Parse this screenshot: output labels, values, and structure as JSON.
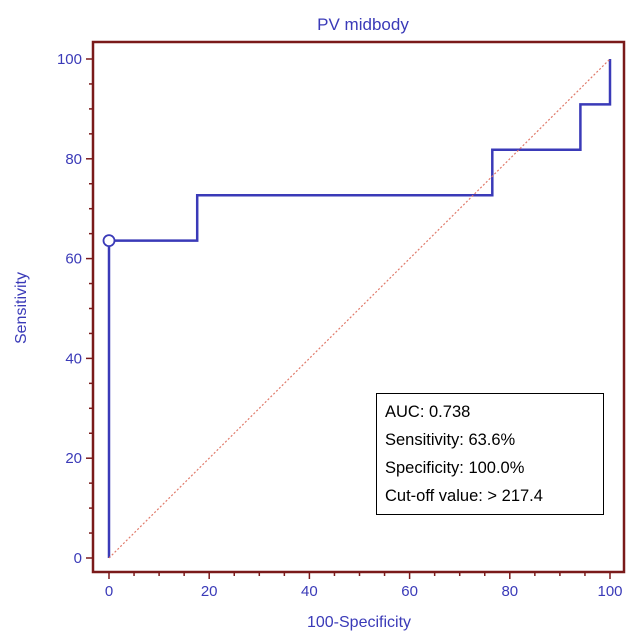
{
  "chart_data": {
    "type": "line",
    "title": "PV midbody",
    "xlabel": "100-Specificity",
    "ylabel": "Sensitivity",
    "xlim": [
      0,
      100
    ],
    "ylim": [
      0,
      100
    ],
    "xticks": [
      0,
      20,
      40,
      60,
      80,
      100
    ],
    "yticks": [
      0,
      20,
      40,
      60,
      80,
      100
    ],
    "grid": false,
    "series": [
      {
        "style": "roc-step",
        "color": "#3a3ab8",
        "x": [
          0,
          0,
          17.6,
          17.6,
          76.5,
          76.5,
          94.1,
          94.1,
          100,
          100
        ],
        "y": [
          0,
          63.6,
          63.6,
          72.7,
          72.7,
          81.8,
          81.8,
          90.9,
          90.9,
          100
        ]
      },
      {
        "style": "reference-diagonal",
        "color": "#e07a6a",
        "x": [
          0,
          100
        ],
        "y": [
          0,
          100
        ]
      }
    ],
    "marker": {
      "x": 0,
      "y": 63.6
    },
    "annotation_box": {
      "placement": "bottom-right",
      "lines": [
        "AUC: 0.738",
        "Sensitivity: 63.6%",
        "Specificity: 100.0%",
        "Cut-off value: > 217.4"
      ]
    }
  },
  "colors": {
    "frame": "#7a1a1a",
    "text": "#3a3ab8",
    "roc": "#3a3ab8",
    "diagonal": "#e07a6a"
  }
}
